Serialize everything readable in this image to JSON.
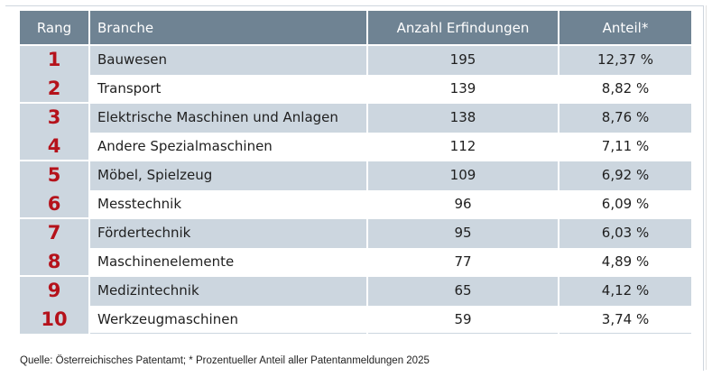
{
  "table": {
    "headers": {
      "rank": "Rang",
      "branch": "Branche",
      "count": "Anzahl Erfindungen",
      "share": "Anteil*"
    },
    "rows": [
      {
        "rank": "1",
        "branch": "Bauwesen",
        "count": "195",
        "share": "12,37 %"
      },
      {
        "rank": "2",
        "branch": "Transport",
        "count": "139",
        "share": "8,82 %"
      },
      {
        "rank": "3",
        "branch": "Elektrische Maschinen und Anlagen",
        "count": "138",
        "share": "8,76 %"
      },
      {
        "rank": "4",
        "branch": "Andere Spezialmaschinen",
        "count": "112",
        "share": "7,11 %"
      },
      {
        "rank": "5",
        "branch": "Möbel, Spielzeug",
        "count": "109",
        "share": "6,92 %"
      },
      {
        "rank": "6",
        "branch": "Messtechnik",
        "count": "96",
        "share": "6,09 %"
      },
      {
        "rank": "7",
        "branch": "Fördertechnik",
        "count": "95",
        "share": "6,03 %"
      },
      {
        "rank": "8",
        "branch": "Maschinenelemente",
        "count": "77",
        "share": "4,89 %"
      },
      {
        "rank": "9",
        "branch": "Medizintechnik",
        "count": "65",
        "share": "4,12 %"
      },
      {
        "rank": "10",
        "branch": "Werkzeugmaschinen",
        "count": "59",
        "share": "3,74 %"
      }
    ]
  },
  "source": "Quelle: Österreichisches Patentamt; * Prozentueller Anteil aller Patentanmeldungen 2025",
  "colors": {
    "header_bg": "#6f8393",
    "row_shade": "#ccd6df",
    "rank_red": "#b5121b"
  }
}
